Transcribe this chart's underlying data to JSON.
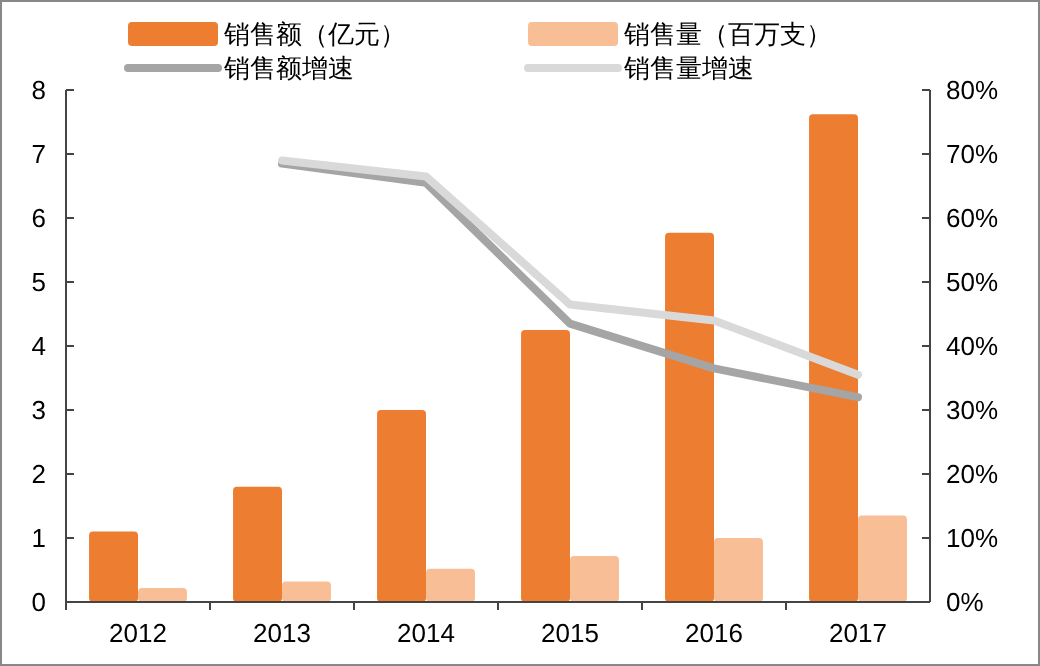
{
  "chart_data": {
    "type": "bar",
    "categories": [
      "2012",
      "2013",
      "2014",
      "2015",
      "2016",
      "2017"
    ],
    "series": [
      {
        "name": "销售额（亿元）",
        "color": "#ed7d31",
        "values": [
          1.1,
          1.8,
          3.0,
          4.25,
          5.77,
          7.62
        ]
      },
      {
        "name": "销售量（百万支）",
        "color": "#f8bf96",
        "values": [
          0.22,
          0.32,
          0.52,
          0.72,
          1.0,
          1.35
        ]
      },
      {
        "name": "销售额增速",
        "type": "line",
        "axis": "y2",
        "color": "#a5a5a5",
        "values": [
          null,
          68.5,
          65.5,
          43.5,
          36.5,
          32
        ]
      },
      {
        "name": "销售量增速",
        "type": "line",
        "axis": "y2",
        "color": "#d9d9d9",
        "values": [
          null,
          69,
          66.5,
          46.5,
          44,
          35.5
        ]
      }
    ],
    "ylim": [
      0,
      8
    ],
    "yticks": [
      0,
      1,
      2,
      3,
      4,
      5,
      6,
      7,
      8
    ],
    "y2lim": [
      0,
      80
    ],
    "y2ticks": [
      {
        "value": 0,
        "label": "0%"
      },
      {
        "value": 10,
        "label": "10%"
      },
      {
        "value": 20,
        "label": "20%"
      },
      {
        "value": 30,
        "label": "30%"
      },
      {
        "value": 40,
        "label": "40%"
      },
      {
        "value": 50,
        "label": "50%"
      },
      {
        "value": 60,
        "label": "60%"
      },
      {
        "value": 70,
        "label": "70%"
      },
      {
        "value": 80,
        "label": "80%"
      }
    ],
    "legend": "top",
    "grid": false
  }
}
